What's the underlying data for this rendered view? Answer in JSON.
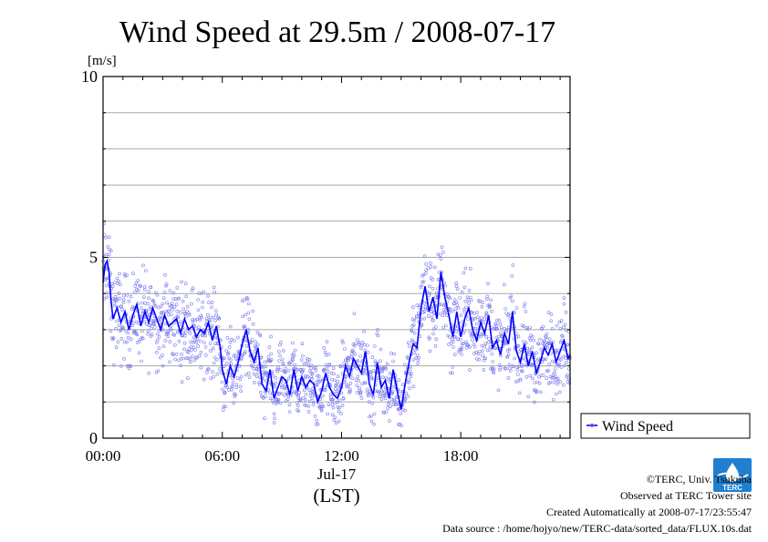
{
  "chart_data": {
    "type": "scatter",
    "title": "Wind Speed at 29.5m / 2008-07-17",
    "ylabel": "[m/s]",
    "xlabel": "(LST)",
    "date_label": "Jul-17",
    "ylim": [
      0,
      10
    ],
    "y_ticks": [
      "0",
      "5",
      "10"
    ],
    "x_range_hours": [
      0,
      23.5
    ],
    "x_ticks": [
      {
        "hour": 0,
        "label": "00:00"
      },
      {
        "hour": 6,
        "label": "06:00"
      },
      {
        "hour": 12,
        "label": "12:00"
      },
      {
        "hour": 18,
        "label": "18:00"
      }
    ],
    "grid": "horizontal, every 1 m/s",
    "legend_position": "right",
    "legend": [
      {
        "name": "Wind Speed",
        "color": "#0000ff"
      }
    ],
    "series": [
      {
        "name": "Wind Speed",
        "render": "line",
        "color": "#0000ff",
        "x_hours": [
          0,
          0.1,
          0.2,
          0.3,
          0.4,
          0.5,
          0.7,
          0.9,
          1.1,
          1.3,
          1.5,
          1.7,
          1.9,
          2.1,
          2.3,
          2.5,
          2.7,
          2.9,
          3.1,
          3.3,
          3.5,
          3.7,
          3.9,
          4.1,
          4.3,
          4.5,
          4.7,
          4.9,
          5.1,
          5.3,
          5.5,
          5.7,
          5.9,
          6.0,
          6.2,
          6.4,
          6.6,
          6.8,
          7.0,
          7.2,
          7.4,
          7.6,
          7.8,
          8.0,
          8.2,
          8.4,
          8.6,
          8.8,
          9.0,
          9.2,
          9.4,
          9.6,
          9.8,
          10.0,
          10.2,
          10.4,
          10.6,
          10.8,
          11.0,
          11.2,
          11.4,
          11.6,
          11.8,
          12.0,
          12.2,
          12.4,
          12.6,
          12.8,
          13.0,
          13.2,
          13.4,
          13.6,
          13.8,
          14.0,
          14.2,
          14.4,
          14.6,
          14.8,
          15.0,
          15.2,
          15.4,
          15.6,
          15.8,
          16.0,
          16.2,
          16.4,
          16.6,
          16.8,
          17.0,
          17.2,
          17.4,
          17.6,
          17.8,
          18.0,
          18.2,
          18.4,
          18.6,
          18.8,
          19.0,
          19.2,
          19.4,
          19.6,
          19.8,
          20.0,
          20.2,
          20.4,
          20.6,
          20.8,
          21.0,
          21.2,
          21.4,
          21.6,
          21.8,
          22.0,
          22.2,
          22.4,
          22.6,
          22.8,
          23.0,
          23.2,
          23.4,
          23.5
        ],
        "values": [
          4.3,
          4.8,
          4.9,
          4.6,
          3.8,
          3.3,
          3.6,
          3.2,
          3.5,
          3.0,
          3.4,
          3.7,
          3.1,
          3.5,
          3.2,
          3.6,
          3.3,
          3.0,
          3.4,
          3.1,
          3.2,
          3.3,
          2.9,
          3.3,
          3.0,
          3.1,
          2.8,
          3.0,
          2.9,
          3.2,
          2.7,
          3.1,
          2.5,
          1.9,
          1.5,
          2.0,
          1.7,
          2.1,
          2.6,
          3.0,
          2.4,
          2.1,
          2.5,
          1.5,
          1.3,
          1.9,
          1.1,
          1.4,
          1.7,
          1.6,
          1.2,
          1.9,
          1.3,
          1.7,
          1.4,
          1.6,
          1.5,
          1.0,
          1.3,
          1.8,
          1.4,
          1.2,
          1.1,
          1.4,
          2.0,
          1.7,
          2.2,
          2.0,
          1.8,
          2.4,
          1.5,
          1.2,
          2.1,
          1.4,
          1.6,
          1.1,
          1.9,
          1.3,
          0.8,
          1.5,
          2.1,
          2.6,
          2.5,
          3.6,
          4.2,
          3.5,
          3.9,
          3.3,
          4.6,
          3.9,
          3.4,
          2.8,
          3.5,
          2.8,
          3.3,
          3.6,
          3.0,
          2.7,
          3.2,
          2.9,
          3.4,
          2.5,
          2.7,
          2.3,
          2.9,
          2.6,
          3.5,
          2.4,
          2.1,
          2.6,
          2.0,
          2.4,
          1.8,
          2.1,
          2.5,
          2.3,
          2.6,
          2.1,
          2.4,
          2.7,
          2.2,
          2.3
        ],
        "sample_spread_m_s": 0.8
      }
    ]
  },
  "footer": {
    "copyright": "©TERC, Univ. Tsukuba",
    "observed": "Observed at TERC Tower site",
    "created": "Created Automatically at 2008-07-17/23:55:47",
    "source": "Data source : /home/hojyo/new/TERC-data/sorted_data/FLUX.10s.dat"
  },
  "logo_text": "TERC",
  "colors": {
    "line": "#0000ff",
    "points": "#7b7bf0",
    "grid": "#a9a9a9",
    "logo": "#1f7fd0"
  }
}
